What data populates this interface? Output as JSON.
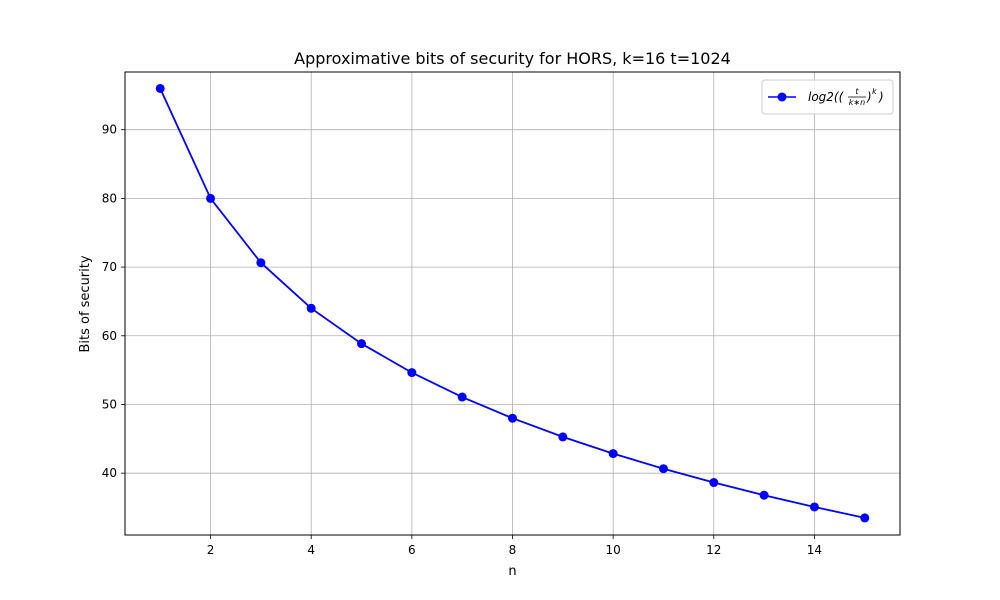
{
  "chart_data": {
    "type": "line",
    "title": "Approximative bits of security for HORS, k=16 t=1024",
    "xlabel": "n",
    "ylabel": "Bits of security",
    "xlim": [
      0.3,
      15.7
    ],
    "ylim": [
      31.0,
      98.4
    ],
    "xticks": [
      2,
      4,
      6,
      8,
      10,
      12,
      14
    ],
    "yticks": [
      40,
      50,
      60,
      70,
      80,
      90
    ],
    "grid": true,
    "legend_position": "top-right",
    "series": [
      {
        "name_parts": {
          "a": "log2((",
          "num": "t",
          "den": "k∗n",
          "b": ")",
          "exp": "k",
          "c": ")"
        },
        "color": "#0000ff",
        "marker": "circle",
        "x": [
          1,
          2,
          3,
          4,
          5,
          6,
          7,
          8,
          9,
          10,
          11,
          12,
          13,
          14,
          15
        ],
        "y": [
          96.0,
          80.0,
          70.64,
          64.0,
          58.85,
          54.64,
          51.08,
          48.0,
          45.28,
          42.85,
          40.65,
          38.64,
          36.79,
          35.08,
          33.49
        ]
      }
    ]
  }
}
